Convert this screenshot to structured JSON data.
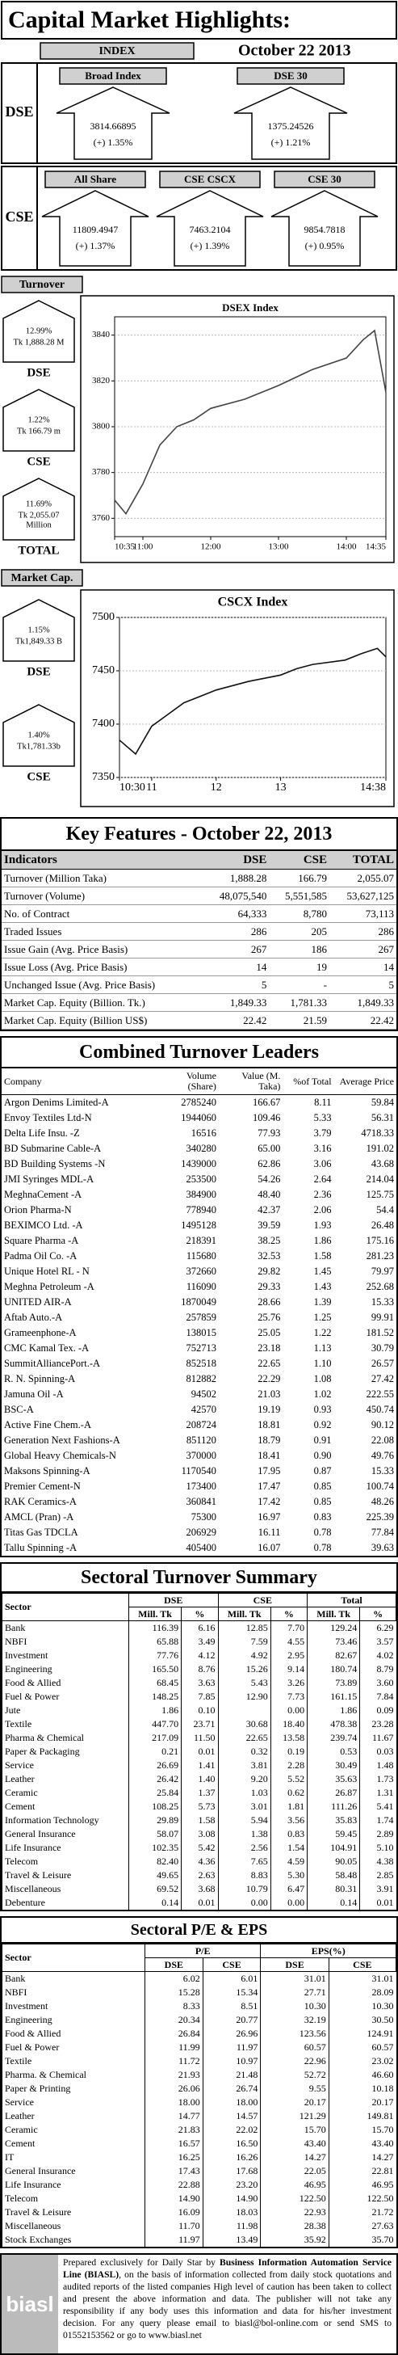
{
  "header": {
    "title": "Capital Market Highlights:",
    "index_label": "INDEX",
    "date": "October 22 2013"
  },
  "dse_indices": {
    "label": "DSE",
    "items": [
      {
        "name": "Broad Index",
        "value": "3814.66895",
        "change": "(+) 1.35%"
      },
      {
        "name": "DSE 30",
        "value": "1375.24526",
        "change": "(+) 1.21%"
      }
    ]
  },
  "cse_indices": {
    "label": "CSE",
    "items": [
      {
        "name": "All Share",
        "value": "11809.4947",
        "change": "(+) 1.37%"
      },
      {
        "name": "CSE CSCX",
        "value": "7463.2104",
        "change": "(+) 1.39%"
      },
      {
        "name": "CSE 30",
        "value": "9854.7818",
        "change": "(+) 0.95%"
      }
    ]
  },
  "turnover": {
    "label": "Turnover",
    "items": [
      {
        "pct": "12.99%",
        "amount": [
          "Tk 1,888.28 M"
        ],
        "name": "DSE"
      },
      {
        "pct": "1.22%",
        "amount": [
          "Tk 166.79 m"
        ],
        "name": "CSE"
      },
      {
        "pct": "11.69%",
        "amount": [
          "Tk 2,055.07",
          "Million"
        ],
        "name": "TOTAL"
      }
    ],
    "chart": {
      "type": "line",
      "title": "DSEX Index",
      "color": "#444444",
      "x": [
        "10:35",
        "10:45",
        "11:00",
        "11:15",
        "11:30",
        "11:45",
        "12:00",
        "12:30",
        "13:00",
        "13:30",
        "14:00",
        "14:15",
        "14:25",
        "14:35"
      ],
      "values": [
        3768,
        3762,
        3775,
        3792,
        3800,
        3803,
        3808,
        3812,
        3818,
        3825,
        3830,
        3838,
        3842,
        3815
      ],
      "ylim": [
        3752,
        3848
      ],
      "yticks": [
        3760,
        3780,
        3800,
        3820,
        3840
      ],
      "xticks": [
        "10:35",
        "11:00",
        "12:00",
        "13:00",
        "14:00",
        "14:35"
      ],
      "grid": true
    }
  },
  "market_cap": {
    "label": "Market Cap.",
    "items": [
      {
        "pct": "1.15%",
        "amount": [
          "Tk1,849.33 B"
        ],
        "name": "DSE"
      },
      {
        "pct": "1.40%",
        "amount": [
          "Tk1,781.33b"
        ],
        "name": "CSE"
      }
    ],
    "chart": {
      "type": "line",
      "title": "CSCX Index",
      "color": "#111111",
      "x": [
        "10:30",
        "10:45",
        "11:00",
        "11:30",
        "12:00",
        "12:30",
        "13:00",
        "13:15",
        "13:30",
        "14:00",
        "14:15",
        "14:30",
        "14:38"
      ],
      "values": [
        7385,
        7372,
        7398,
        7420,
        7432,
        7440,
        7446,
        7452,
        7456,
        7460,
        7466,
        7471,
        7463
      ],
      "ylim": [
        7350,
        7500
      ],
      "yticks": [
        7350,
        7400,
        7450,
        7500
      ],
      "xticks": [
        "10:30",
        "11",
        "12",
        "13",
        "14:38"
      ],
      "grid": true
    }
  },
  "key_features": {
    "title": "Key Features - October 22, 2013",
    "columns": [
      "Indicators",
      "DSE",
      "CSE",
      "TOTAL"
    ],
    "rows": [
      [
        "Turnover (Million Taka)",
        "1,888.28",
        "166.79",
        "2,055.07"
      ],
      [
        "Turnover (Volume)",
        "48,075,540",
        "5,551,585",
        "53,627,125"
      ],
      [
        "No. of Contract",
        "64,333",
        "8,780",
        "73,113"
      ],
      [
        "Traded Issues",
        "286",
        "205",
        "286"
      ],
      [
        "Issue Gain (Avg. Price Basis)",
        "267",
        "186",
        "267"
      ],
      [
        "Issue Loss (Avg. Price Basis)",
        "14",
        "19",
        "14"
      ],
      [
        "Unchanged Issue (Avg. Price Basis)",
        "5",
        "-",
        "5"
      ],
      [
        "Market Cap. Equity (Billion. Tk.)",
        "1,849.33",
        "1,781.33",
        "1,849.33"
      ],
      [
        "Market Cap. Equity (Billion US$)",
        "22.42",
        "21.59",
        "22.42"
      ]
    ]
  },
  "turnover_leaders": {
    "title": "Combined Turnover Leaders",
    "columns": [
      "Company",
      "Volume (Share)",
      "Value (M. Taka)",
      "%of Total",
      "Average Price"
    ],
    "rows": [
      [
        "Argon Denims Limited-A",
        "2785240",
        "166.67",
        "8.11",
        "59.84"
      ],
      [
        "Envoy Textiles Ltd-N",
        "1944060",
        "109.46",
        "5.33",
        "56.31"
      ],
      [
        "Delta Life Insu. -Z",
        "16516",
        "77.93",
        "3.79",
        "4718.33"
      ],
      [
        "BD Submarine Cable-A",
        "340280",
        "65.00",
        "3.16",
        "191.02"
      ],
      [
        "BD Building Systems -N",
        "1439000",
        "62.86",
        "3.06",
        "43.68"
      ],
      [
        "JMI Syringes MDL-A",
        "253500",
        "54.26",
        "2.64",
        "214.04"
      ],
      [
        "MeghnaCement -A",
        "384900",
        "48.40",
        "2.36",
        "125.75"
      ],
      [
        "Orion Pharma-N",
        "778940",
        "42.37",
        "2.06",
        "54.4"
      ],
      [
        "BEXIMCO Ltd. -A",
        "1495128",
        "39.59",
        "1.93",
        "26.48"
      ],
      [
        "Square Pharma -A",
        "218391",
        "38.25",
        "1.86",
        "175.16"
      ],
      [
        "Padma Oil Co. -A",
        "115680",
        "32.53",
        "1.58",
        "281.23"
      ],
      [
        "Unique Hotel RL - N",
        "372660",
        "29.82",
        "1.45",
        "79.97"
      ],
      [
        "Meghna Petroleum -A",
        "116090",
        "29.33",
        "1.43",
        "252.68"
      ],
      [
        "UNITED AIR-A",
        "1870049",
        "28.66",
        "1.39",
        "15.33"
      ],
      [
        "Aftab Auto.-A",
        "257859",
        "25.76",
        "1.25",
        "99.91"
      ],
      [
        "Grameenphone-A",
        "138015",
        "25.05",
        "1.22",
        "181.52"
      ],
      [
        "CMC Kamal Tex. -A",
        "752713",
        "23.18",
        "1.13",
        "30.79"
      ],
      [
        "SummitAlliancePort.-A",
        "852518",
        "22.65",
        "1.10",
        "26.57"
      ],
      [
        "R. N. Spinning-A",
        "812882",
        "22.29",
        "1.08",
        "27.42"
      ],
      [
        "Jamuna Oil -A",
        "94502",
        "21.03",
        "1.02",
        "222.55"
      ],
      [
        "BSC-A",
        "42570",
        "19.19",
        "0.93",
        "450.74"
      ],
      [
        "Active Fine Chem.-A",
        "208724",
        "18.81",
        "0.92",
        "90.12"
      ],
      [
        "Generation Next Fashions-A",
        "851120",
        "18.79",
        "0.91",
        "22.08"
      ],
      [
        "Global Heavy Chemicals-N",
        "370000",
        "18.41",
        "0.90",
        "49.76"
      ],
      [
        "Maksons Spinning-A",
        "1170540",
        "17.95",
        "0.87",
        "15.33"
      ],
      [
        "Premier Cement-N",
        "173400",
        "17.47",
        "0.85",
        "100.74"
      ],
      [
        "RAK Ceramics-A",
        "360841",
        "17.42",
        "0.85",
        "48.26"
      ],
      [
        "AMCL (Pran) -A",
        "75300",
        "16.97",
        "0.83",
        "225.39"
      ],
      [
        "Titas Gas TDCLA",
        "206929",
        "16.11",
        "0.78",
        "77.84"
      ],
      [
        "Tallu Spinning -A",
        "405400",
        "16.07",
        "0.78",
        "39.63"
      ]
    ]
  },
  "sectoral_turnover": {
    "title": "Sectoral Turnover Summary",
    "sector_label": "Sector",
    "groups": [
      "DSE",
      "CSE",
      "Total"
    ],
    "subheaders": [
      "Mill. Tk",
      "%",
      "Mill. Tk",
      "%",
      "Mill. Tk",
      "%"
    ],
    "rows": [
      [
        "Bank",
        "116.39",
        "6.16",
        "12.85",
        "7.70",
        "129.24",
        "6.29"
      ],
      [
        "NBFI",
        "65.88",
        "3.49",
        "7.59",
        "4.55",
        "73.46",
        "3.57"
      ],
      [
        "Investment",
        "77.76",
        "4.12",
        "4.92",
        "2.95",
        "82.67",
        "4.02"
      ],
      [
        "Engineering",
        "165.50",
        "8.76",
        "15.26",
        "9.14",
        "180.74",
        "8.79"
      ],
      [
        "Food & Allied",
        "68.45",
        "3.63",
        "5.43",
        "3.26",
        "73.89",
        "3.60"
      ],
      [
        "Fuel & Power",
        "148.25",
        "7.85",
        "12.90",
        "7.73",
        "161.15",
        "7.84"
      ],
      [
        "Jute",
        "1.86",
        "0.10",
        null,
        "0.00",
        "1.86",
        "0.09"
      ],
      [
        "Textile",
        "447.70",
        "23.71",
        "30.68",
        "18.40",
        "478.38",
        "23.28"
      ],
      [
        "Pharma & Chemical",
        "217.09",
        "11.50",
        "22.65",
        "13.58",
        "239.74",
        "11.67"
      ],
      [
        "Paper & Packaging",
        "0.21",
        "0.01",
        "0.32",
        "0.19",
        "0.53",
        "0.03"
      ],
      [
        "Service",
        "26.69",
        "1.41",
        "3.81",
        "2.28",
        "30.49",
        "1.48"
      ],
      [
        "Leather",
        "26.42",
        "1.40",
        "9.20",
        "5.52",
        "35.63",
        "1.73"
      ],
      [
        "Ceramic",
        "25.84",
        "1.37",
        "1.03",
        "0.62",
        "26.87",
        "1.31"
      ],
      [
        "Cement",
        "108.25",
        "5.73",
        "3.01",
        "1.81",
        "111.26",
        "5.41"
      ],
      [
        "Information Technology",
        "29.89",
        "1.58",
        "5.94",
        "3.56",
        "35.83",
        "1.74"
      ],
      [
        "General Insurance",
        "58.07",
        "3.08",
        "1.38",
        "0.83",
        "59.45",
        "2.89"
      ],
      [
        "Life Insurance",
        "102.35",
        "5.42",
        "2.56",
        "1.54",
        "104.91",
        "5.10"
      ],
      [
        "Telecom",
        "82.40",
        "4.36",
        "7.65",
        "4.59",
        "90.05",
        "4.38"
      ],
      [
        "Travel & Leisure",
        "49.65",
        "2.63",
        "8.83",
        "5.30",
        "58.48",
        "2.85"
      ],
      [
        "Miscellaneous",
        "69.52",
        "3.68",
        "10.79",
        "6.47",
        "80.31",
        "3.91"
      ],
      [
        "Debenture",
        "0.14",
        "0.01",
        "0.00",
        "0.00",
        "0.14",
        "0.01"
      ]
    ]
  },
  "sectoral_pe": {
    "title": "Sectoral P/E & EPS",
    "sector_label": "Sector",
    "groups": [
      "P/E",
      "EPS(%)"
    ],
    "subheaders": [
      "DSE",
      "CSE",
      "DSE",
      "CSE"
    ],
    "rows": [
      [
        "Bank",
        "6.02",
        "6.01",
        "31.01",
        "31.01"
      ],
      [
        "NBFI",
        "15.28",
        "15.34",
        "27.71",
        "28.09"
      ],
      [
        "Investment",
        "8.33",
        "8.51",
        "10.30",
        "10.30"
      ],
      [
        "Engineering",
        "20.34",
        "20.77",
        "32.19",
        "30.50"
      ],
      [
        "Food & Allied",
        "26.84",
        "26.96",
        "123.56",
        "124.91"
      ],
      [
        "Fuel & Power",
        "11.99",
        "11.97",
        "60.57",
        "60.57"
      ],
      [
        "Textile",
        "11.72",
        "10.97",
        "22.96",
        "23.02"
      ],
      [
        "Pharma. & Chemical",
        "21.93",
        "21.48",
        "52.72",
        "46.60"
      ],
      [
        "Paper & Printing",
        "26.06",
        "26.74",
        "9.55",
        "10.18"
      ],
      [
        "Service",
        "18.00",
        "18.00",
        "20.17",
        "20.17"
      ],
      [
        "Leather",
        "14.77",
        "14.57",
        "121.29",
        "149.81"
      ],
      [
        "Ceramic",
        "21.83",
        "22.02",
        "15.70",
        "15.70"
      ],
      [
        "Cement",
        "16.57",
        "16.50",
        "43.40",
        "43.40"
      ],
      [
        "IT",
        "16.25",
        "16.26",
        "14.27",
        "14.27"
      ],
      [
        "General Insurance",
        "17.43",
        "17.68",
        "22.05",
        "22.81"
      ],
      [
        "Life Insurance",
        "22.88",
        "23.20",
        "46.95",
        "46.95"
      ],
      [
        "Telecom",
        "14.90",
        "14.90",
        "122.50",
        "122.50"
      ],
      [
        "Travel & Leisure",
        "16.09",
        "18.03",
        "22.93",
        "21.72"
      ],
      [
        "Miscellaneous",
        "11.70",
        "11.98",
        "28.38",
        "27.63"
      ],
      [
        "Stock Exchanges",
        "11.97",
        "13.49",
        "35.92",
        "35.70"
      ]
    ]
  },
  "footer": {
    "logo": "biasl",
    "parts": [
      "Prepared exclusively for Daily Star by ",
      "Business Information Automation Service Line (BIASL)",
      ", on the basis of information collected from daily stock quotations and audited reports of the listed companies High level of caution has been taken to collect and present the above information and data. The publisher will not take any responsibility if any body uses this information and data for his/her investment decision. For any query please email to biasl@bol-online.com or send SMS to 01552153562 or go to www.biasl.net"
    ]
  }
}
